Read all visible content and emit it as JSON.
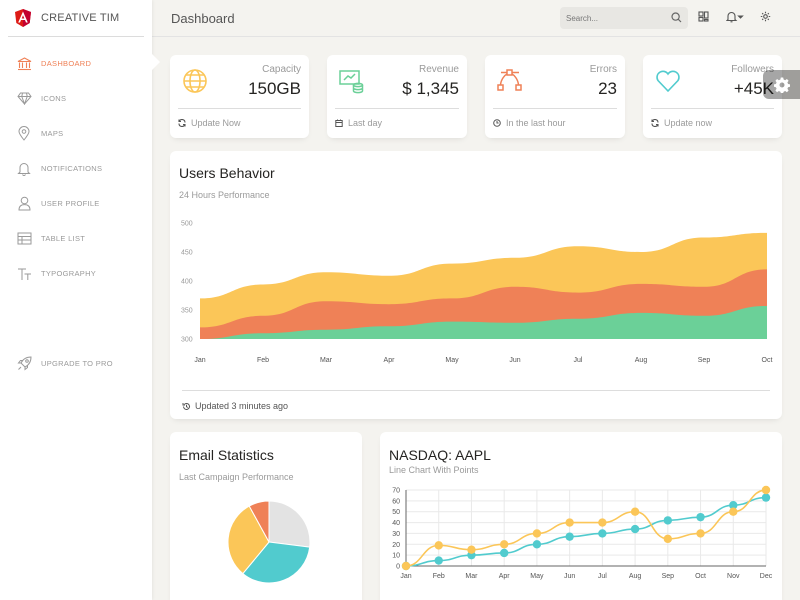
{
  "brand": {
    "name": "CREATIVE TIM"
  },
  "sidebar": {
    "items": [
      {
        "label": "DASHBOARD",
        "icon": "bank-icon",
        "active": true
      },
      {
        "label": "ICONS",
        "icon": "diamond-icon"
      },
      {
        "label": "MAPS",
        "icon": "pin-icon"
      },
      {
        "label": "NOTIFICATIONS",
        "icon": "bell-icon"
      },
      {
        "label": "USER PROFILE",
        "icon": "user-icon"
      },
      {
        "label": "TABLE LIST",
        "icon": "table-icon"
      },
      {
        "label": "TYPOGRAPHY",
        "icon": "text-icon"
      }
    ],
    "upgrade": {
      "label": "UPGRADE TO PRO",
      "icon": "rocket-icon"
    }
  },
  "header": {
    "title": "Dashboard",
    "search_placeholder": "Search..."
  },
  "stats": [
    {
      "category": "Capacity",
      "value": "150GB",
      "footer": "Update Now",
      "icon": "globe-icon",
      "color": "#fbc658",
      "footer_icon": "refresh-icon"
    },
    {
      "category": "Revenue",
      "value": "$ 1,345",
      "footer": "Last day",
      "icon": "money-icon",
      "color": "#6bd098",
      "footer_icon": "calendar-icon"
    },
    {
      "category": "Errors",
      "value": "23",
      "footer": "In the last hour",
      "icon": "vector-icon",
      "color": "#ef8157",
      "footer_icon": "clock-icon"
    },
    {
      "category": "Followers",
      "value": "+45K",
      "footer": "Update now",
      "icon": "heart-icon",
      "color": "#51cbce",
      "footer_icon": "refresh-icon"
    }
  ],
  "users_behavior": {
    "title": "Users Behavior",
    "subtitle": "24 Hours Performance",
    "footer": "Updated 3 minutes ago"
  },
  "email_stats": {
    "title": "Email Statistics",
    "subtitle": "Last Campaign Performance"
  },
  "nasdaq": {
    "title": "NASDAQ: AAPL",
    "subtitle": "Line Chart With Points"
  },
  "colors": {
    "accent": "#ef8157",
    "yellow": "#fbc658",
    "green": "#6bd098",
    "teal": "#51cbce",
    "gray": "#e3e3e3"
  },
  "chart_data": [
    {
      "type": "area",
      "categories": [
        "Jan",
        "Feb",
        "Mar",
        "Apr",
        "May",
        "Jun",
        "Jul",
        "Aug",
        "Sep",
        "Oct"
      ],
      "y_ticks": [
        300,
        350,
        400,
        450,
        500
      ],
      "ylim": [
        300,
        500
      ],
      "grid": false,
      "series": [
        {
          "color": "#6bd098",
          "values": [
            300,
            310,
            316,
            322,
            330,
            328,
            335,
            345,
            340,
            357
          ]
        },
        {
          "color": "#ef8157",
          "values": [
            320,
            340,
            365,
            360,
            370,
            390,
            380,
            395,
            390,
            420
          ]
        },
        {
          "color": "#fbc658",
          "values": [
            370,
            394,
            415,
            409,
            430,
            440,
            460,
            450,
            475,
            483
          ]
        }
      ]
    },
    {
      "type": "pie",
      "slices": [
        {
          "color": "#e3e3e3",
          "value": 27
        },
        {
          "color": "#51cbce",
          "value": 34
        },
        {
          "color": "#fbc658",
          "value": 31
        },
        {
          "color": "#ef8157",
          "value": 8
        }
      ]
    },
    {
      "type": "line",
      "categories": [
        "Jan",
        "Feb",
        "Mar",
        "Apr",
        "May",
        "Jun",
        "Jul",
        "Aug",
        "Sep",
        "Oct",
        "Nov",
        "Dec"
      ],
      "y_ticks": [
        0,
        10,
        20,
        30,
        40,
        50,
        60,
        70
      ],
      "ylim": [
        0,
        70
      ],
      "grid": true,
      "series": [
        {
          "color": "#51cbce",
          "values": [
            0,
            5,
            10,
            12,
            20,
            27,
            30,
            34,
            42,
            45,
            56,
            63
          ]
        },
        {
          "color": "#fbc658",
          "values": [
            0,
            19,
            15,
            20,
            30,
            40,
            40,
            50,
            25,
            30,
            50,
            70
          ]
        }
      ]
    }
  ]
}
